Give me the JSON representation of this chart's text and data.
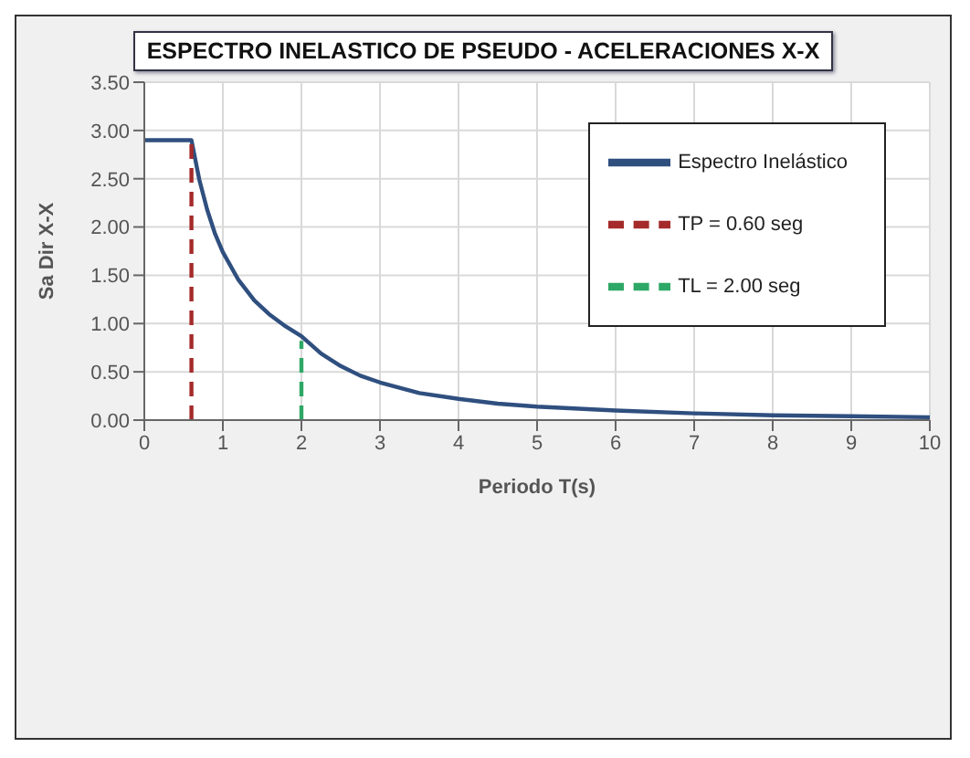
{
  "chart_data": {
    "type": "line",
    "title": "ESPECTRO INELASTICO DE PSEUDO - ACELERACIONES X-X",
    "xlabel": "Periodo T(s)",
    "ylabel": "Sa Dir X-X",
    "xlim": [
      0,
      10
    ],
    "xticks": [
      0,
      1,
      2,
      3,
      4,
      5,
      6,
      7,
      8,
      9,
      10
    ],
    "ylim": [
      0,
      3.5
    ],
    "yticks": [
      {
        "value": 0,
        "label": "0.00"
      },
      {
        "value": 0.5,
        "label": "0.50"
      },
      {
        "value": 1,
        "label": "1.00"
      },
      {
        "value": 1.5,
        "label": "1.50"
      },
      {
        "value": 2,
        "label": "2.00"
      },
      {
        "value": 2.5,
        "label": "2.50"
      },
      {
        "value": 3,
        "label": "3.00"
      },
      {
        "value": 3.5,
        "label": "3.50"
      }
    ],
    "grid": true,
    "legend": "top right",
    "marker": "none",
    "series": [
      {
        "name": "Espectro Inelástico",
        "color": "#2f4f7f",
        "line_style": "solid",
        "x": [
          0,
          0.6,
          0.7,
          0.8,
          0.9,
          1.0,
          1.2,
          1.4,
          1.6,
          1.8,
          2.0,
          2.25,
          2.5,
          2.75,
          3,
          3.5,
          4,
          4.5,
          5,
          6,
          7,
          8,
          9,
          10
        ],
        "values": [
          2.9,
          2.9,
          2.49,
          2.18,
          1.93,
          1.74,
          1.45,
          1.24,
          1.09,
          0.97,
          0.87,
          0.69,
          0.56,
          0.46,
          0.39,
          0.28,
          0.22,
          0.17,
          0.14,
          0.1,
          0.07,
          0.05,
          0.04,
          0.03
        ]
      },
      {
        "name": "TP = 0.60 seg",
        "color": "#a52a2a",
        "line_style": "dashed",
        "x": [
          0.6,
          0.6
        ],
        "values": [
          0,
          2.9
        ]
      },
      {
        "name": "TL = 2.00 seg",
        "color": "#2ea866",
        "line_style": "dashed",
        "x": [
          2,
          2
        ],
        "values": [
          0,
          0.82
        ]
      }
    ]
  }
}
